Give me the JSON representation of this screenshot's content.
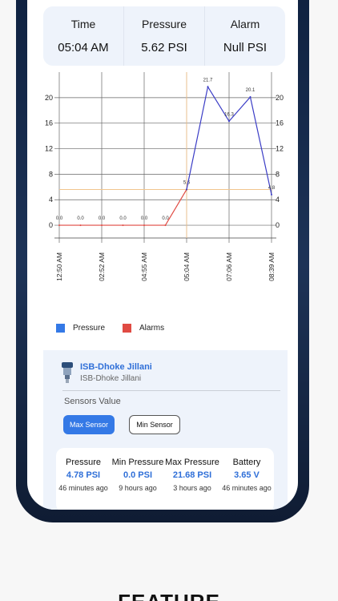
{
  "info": {
    "time_label": "Time",
    "time_value": "05:04 AM",
    "pressure_label": "Pressure",
    "pressure_value": "5.62 PSI",
    "alarm_label": "Alarm",
    "alarm_value": "Null PSI"
  },
  "chart_data": {
    "type": "line",
    "title": "",
    "xlabel": "",
    "ylabel": "",
    "ylim": [
      -2,
      24
    ],
    "yticks": [
      0,
      4,
      8,
      12,
      16,
      20
    ],
    "x_tick_labels": [
      "12:50 AM",
      "02:52 AM",
      "04:55 AM",
      "05:04 AM",
      "07:06 AM",
      "08:39 AM"
    ],
    "series": [
      {
        "name": "Alarms",
        "color": "#e04b43",
        "values": [
          0.0,
          0.0,
          0.0,
          0.0,
          0.0,
          0.0,
          5.6
        ],
        "labels": [
          "0.0",
          "0.0",
          "0.0",
          "0.0",
          "0.0",
          "0.0",
          "5.6"
        ]
      },
      {
        "name": "Pressure",
        "color": "#3a3cc6",
        "values": [
          5.6,
          21.7,
          16.3,
          20.1,
          4.8
        ],
        "labels": [
          "5.6",
          "21.7",
          "16.3",
          "20.1",
          "4.8"
        ]
      }
    ],
    "grid": true
  },
  "legend": {
    "pressure_label": "Pressure",
    "pressure_color": "#3479e6",
    "alarms_label": "Alarms",
    "alarms_color": "#e04b43"
  },
  "device": {
    "name": "ISB-Dhoke Jillani",
    "subtitle": "ISB-Dhoke Jillani",
    "sensors_title": "Sensors Value",
    "max_button": "Max Sensor",
    "min_button": "Min Sensor"
  },
  "stats": [
    {
      "label": "Pressure",
      "value": "4.78 PSI",
      "time": "46 minutes ago"
    },
    {
      "label": "Min Pressure",
      "value": "0.0 PSI",
      "time": "9 hours ago"
    },
    {
      "label": "Max Pressure",
      "value": "21.68 PSI",
      "time": "3 hours ago"
    },
    {
      "label": "Battery",
      "value": "3.65 V",
      "time": "46 minutes ago"
    }
  ],
  "feature_heading": "FEATURE"
}
